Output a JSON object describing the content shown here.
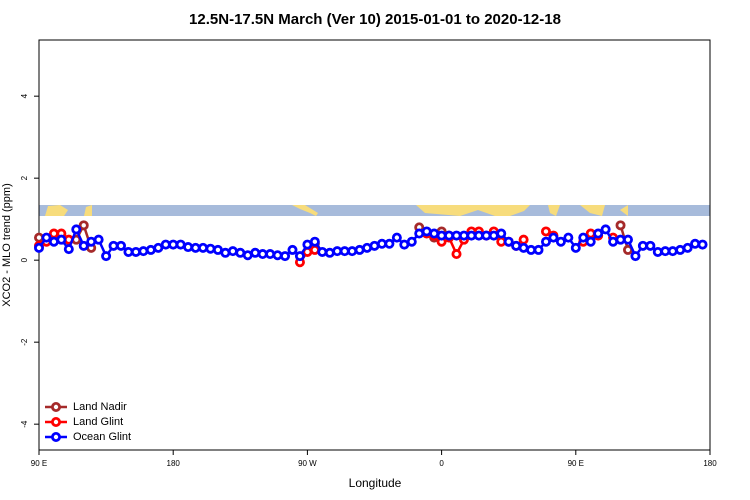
{
  "chart_data": {
    "type": "line",
    "title": "12.5N-17.5N March (Ver 10)   2015-01-01 to 2020-12-18",
    "xlabel": "Longitude",
    "ylabel": "XCO2 - MLO trend (ppm)",
    "xlim": [
      90,
      540
    ],
    "xticks": [
      {
        "value": 90,
        "label": "90 E"
      },
      180,
      {
        "value": 270,
        "label": "90 W"
      },
      {
        "value": 360,
        "label": "0"
      },
      {
        "value": 450,
        "label": "90 E"
      },
      {
        "value": 540,
        "label": "180"
      }
    ],
    "ylim": [
      -4.63,
      5.37
    ],
    "yticks": [
      -4,
      -2,
      0,
      2,
      4
    ],
    "legend": "bottom-left",
    "series": [
      {
        "name": "Land Nadir",
        "color": "#a52a2a",
        "x": [
          90,
          95,
          100,
          105,
          110,
          115,
          120,
          125,
          270,
          275,
          340,
          345,
          350,
          355,
          360,
          365,
          370,
          375,
          475,
          480,
          485
        ],
        "values": [
          0.55,
          null,
          0.6,
          0.6,
          null,
          0.5,
          0.85,
          0.3,
          null,
          0.4,
          null,
          0.8,
          null,
          0.55,
          0.7,
          0.6,
          null,
          0.55,
          null,
          0.85,
          0.25
        ]
      },
      {
        "name": "Land Glint",
        "color": "#ff0000",
        "x": [
          90,
          95,
          100,
          105,
          110,
          115,
          265,
          270,
          275,
          345,
          350,
          355,
          360,
          365,
          370,
          375,
          380,
          385,
          390,
          395,
          400,
          405,
          410,
          415,
          420,
          430,
          435,
          440,
          455,
          460,
          465,
          470,
          475
        ],
        "values": [
          0.35,
          0.45,
          0.65,
          0.65,
          0.5,
          null,
          -0.05,
          0.2,
          0.25,
          null,
          0.65,
          0.6,
          0.45,
          0.55,
          0.15,
          0.5,
          0.7,
          0.7,
          0.6,
          0.7,
          0.45,
          0.45,
          0.35,
          0.5,
          null,
          0.7,
          0.6,
          null,
          0.45,
          0.65,
          0.6,
          null,
          0.55
        ]
      },
      {
        "name": "Ocean Glint",
        "color": "#0000ff",
        "x": [
          90,
          95,
          100,
          105,
          110,
          115,
          120,
          125,
          130,
          135,
          140,
          145,
          150,
          155,
          160,
          165,
          170,
          175,
          180,
          185,
          190,
          195,
          200,
          205,
          210,
          215,
          220,
          225,
          230,
          235,
          240,
          245,
          250,
          255,
          260,
          265,
          270,
          275,
          280,
          285,
          290,
          295,
          300,
          305,
          310,
          315,
          320,
          325,
          330,
          335,
          340,
          345,
          350,
          355,
          360,
          365,
          370,
          375,
          380,
          385,
          390,
          395,
          400,
          405,
          410,
          415,
          420,
          425,
          430,
          435,
          440,
          445,
          450,
          455,
          460,
          465,
          470,
          475,
          480,
          485,
          490,
          495,
          500,
          505,
          510,
          515,
          520,
          525,
          530,
          535
        ],
        "values": [
          0.3,
          0.55,
          0.45,
          0.5,
          0.27,
          0.75,
          0.35,
          0.45,
          0.5,
          0.1,
          0.35,
          0.35,
          0.2,
          0.2,
          0.22,
          0.25,
          0.3,
          0.38,
          0.38,
          0.38,
          0.32,
          0.3,
          0.3,
          0.28,
          0.25,
          0.18,
          0.22,
          0.18,
          0.12,
          0.18,
          0.15,
          0.15,
          0.12,
          0.1,
          0.25,
          0.1,
          0.38,
          0.45,
          0.2,
          0.18,
          0.22,
          0.22,
          0.22,
          0.25,
          0.3,
          0.35,
          0.4,
          0.4,
          0.55,
          0.38,
          0.45,
          0.65,
          0.7,
          0.65,
          0.6,
          0.6,
          0.6,
          0.6,
          0.6,
          0.6,
          0.6,
          0.6,
          0.65,
          0.45,
          0.35,
          0.3,
          0.25,
          0.25,
          0.45,
          0.55,
          0.45,
          0.55,
          0.3,
          0.55,
          0.45,
          0.65,
          0.75,
          0.45,
          0.5,
          0.5,
          0.1,
          0.35,
          0.35,
          0.2,
          0.22,
          0.22,
          0.25,
          0.3,
          0.4,
          0.38
        ]
      }
    ]
  }
}
